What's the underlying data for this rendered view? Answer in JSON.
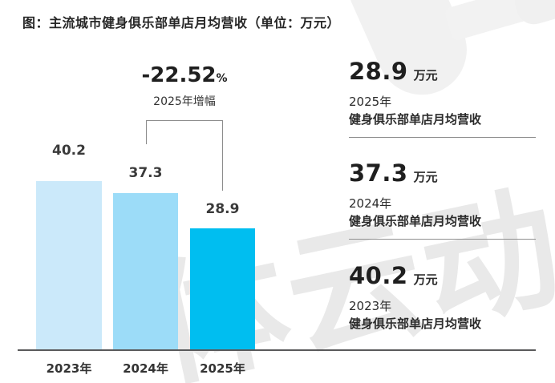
{
  "title": "图：主流城市健身俱乐部单店月均营收（单位：万元）",
  "chart_data": {
    "type": "bar",
    "title": "主流城市健身俱乐部单店月均营收",
    "unit": "万元",
    "categories": [
      "2023年",
      "2024年",
      "2025年"
    ],
    "values": [
      40.2,
      37.3,
      28.9
    ],
    "data_labels": [
      "40.2",
      "37.3",
      "28.9"
    ],
    "bar_colors": [
      "#cbe9fa",
      "#9cdcf8",
      "#00bef0"
    ],
    "ylim": [
      0,
      43
    ],
    "grid": false,
    "legend": false,
    "annotation": {
      "value": "-22.52",
      "suffix": "%",
      "label": "2025年增幅",
      "between": [
        "2024年",
        "2025年"
      ]
    }
  },
  "stats": [
    {
      "value": "28.9",
      "unit": "万元",
      "year": "2025年",
      "label": "健身俱乐部单店月均营收"
    },
    {
      "value": "37.3",
      "unit": "万元",
      "year": "2024年",
      "label": "健身俱乐部单店月均营收"
    },
    {
      "value": "40.2",
      "unit": "万元",
      "year": "2023年",
      "label": "健身俱乐部单店月均营收"
    }
  ],
  "watermark": {
    "text": "体云动"
  },
  "colors": {
    "bar_2023": "#cbe9fa",
    "bar_2024": "#9cdcf8",
    "bar_2025": "#00bef0",
    "axis_line": "#5a5a5b",
    "divider": "#8f8f8f",
    "text_dark": "#262626",
    "watermark": "#e9e9e9"
  }
}
